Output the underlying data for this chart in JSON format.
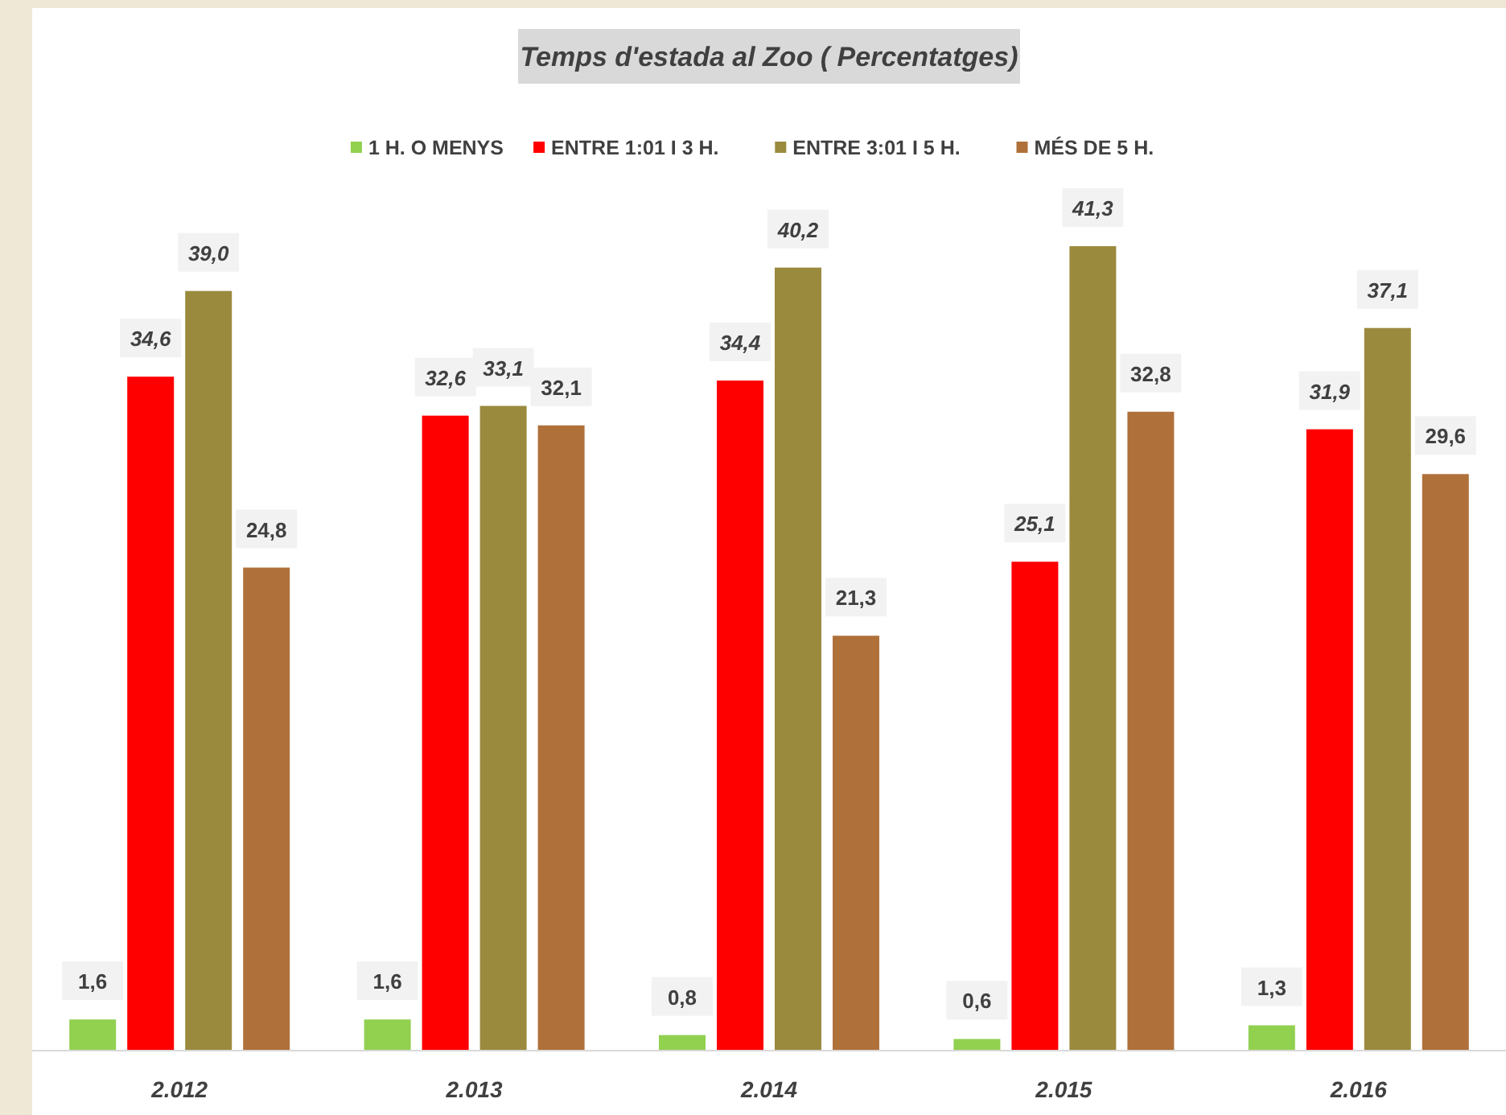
{
  "chart_data": {
    "type": "bar",
    "title": "Temps d'estada al Zoo ( Percentatges)",
    "categories": [
      "2.012",
      "2.013",
      "2.014",
      "2.015",
      "2.016"
    ],
    "legend": "top",
    "series": [
      {
        "name": "1 H. O MENYS",
        "color": "#92d050",
        "values": [
          1.6,
          1.6,
          0.8,
          0.6,
          1.3
        ],
        "value_labels": [
          "1,6",
          "1,6",
          "0,8",
          "0,6",
          "1,3"
        ]
      },
      {
        "name": "ENTRE 1:01 I 3 H.",
        "color": "#ff0000",
        "values": [
          34.6,
          32.6,
          34.4,
          25.1,
          31.9
        ],
        "value_labels": [
          "34,6",
          "32,6",
          "34,4",
          "25,1",
          "31,9"
        ]
      },
      {
        "name": "ENTRE 3:01 I 5 H.",
        "color": "#9a8a3e",
        "values": [
          39.0,
          33.1,
          40.2,
          41.3,
          37.1
        ],
        "value_labels": [
          "39,0",
          "33,1",
          "40,2",
          "41,3",
          "37,1"
        ]
      },
      {
        "name": "MÉS DE 5 H.",
        "color": "#b0703a",
        "values": [
          24.8,
          32.1,
          21.3,
          32.8,
          29.6
        ],
        "value_labels": [
          "24,8",
          "32,1",
          "21,3",
          "32,8",
          "29,6"
        ]
      }
    ]
  }
}
